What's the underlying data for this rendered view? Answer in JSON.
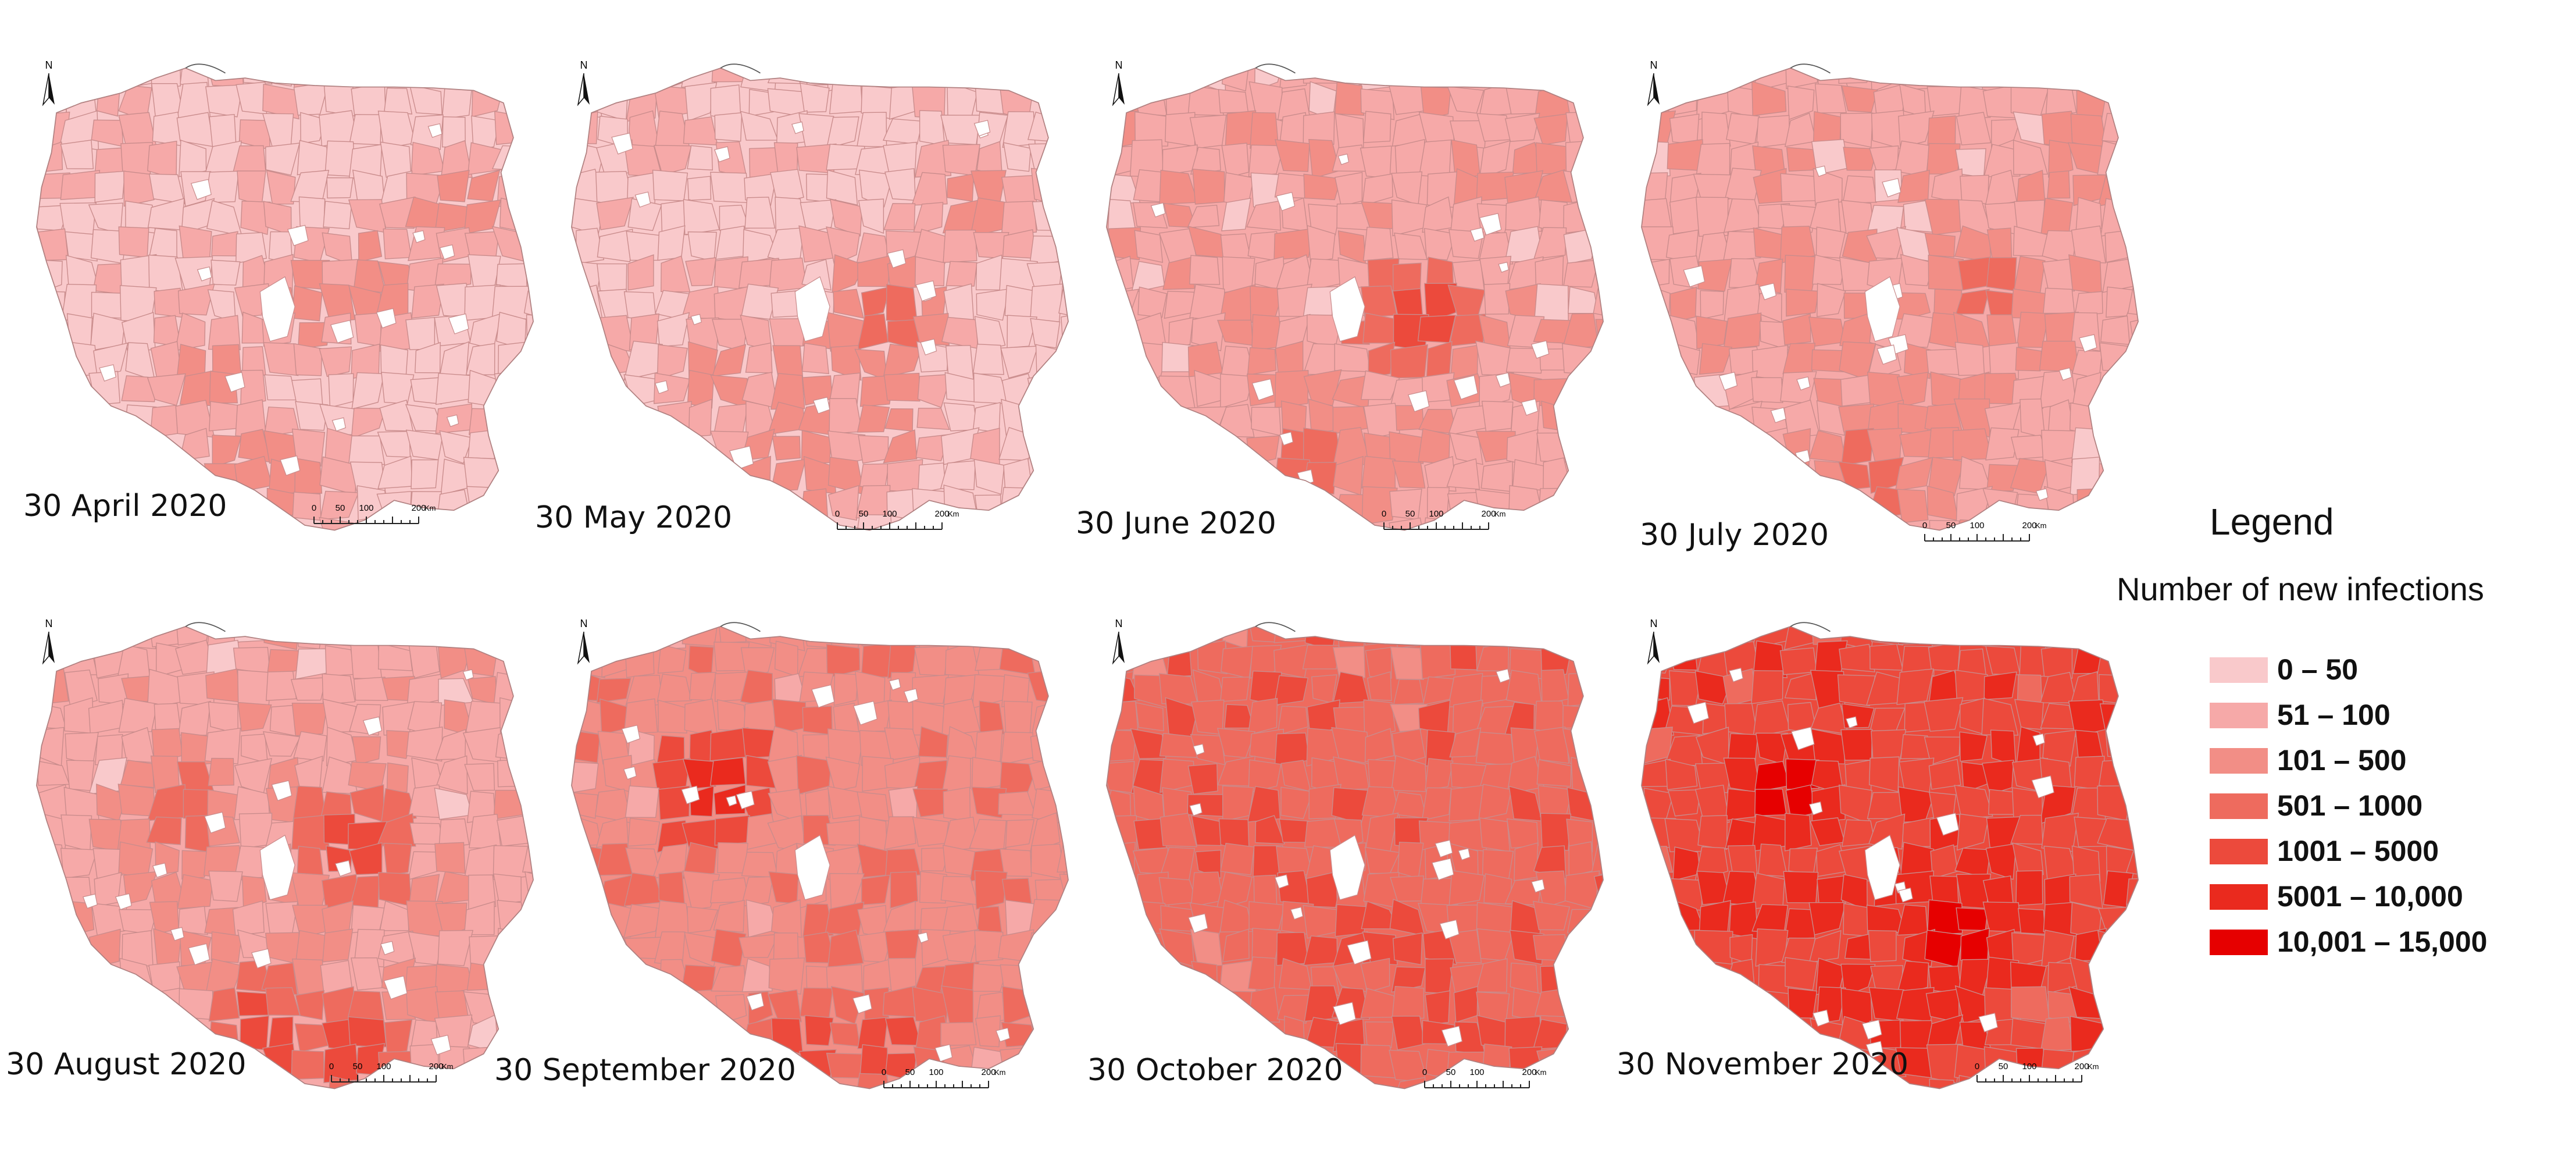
{
  "maps": [
    {
      "date_label": "30 April 2020",
      "level": 0,
      "hotspots": [
        [
          0.55,
          0.52,
          2
        ],
        [
          0.33,
          0.68,
          2
        ],
        [
          0.4,
          0.85,
          2
        ],
        [
          0.62,
          0.62,
          1
        ],
        [
          0.28,
          0.55,
          1
        ],
        [
          0.18,
          0.15,
          1
        ],
        [
          0.47,
          0.3,
          1
        ],
        [
          0.85,
          0.32,
          2
        ],
        [
          0.5,
          0.88,
          2
        ],
        [
          0.3,
          0.8,
          1
        ],
        [
          0.68,
          0.46,
          2
        ]
      ]
    },
    {
      "date_label": "30 May 2020",
      "level": 0,
      "hotspots": [
        [
          0.62,
          0.55,
          3
        ],
        [
          0.3,
          0.68,
          2
        ],
        [
          0.4,
          0.86,
          2
        ],
        [
          0.65,
          0.75,
          2
        ],
        [
          0.55,
          0.4,
          1
        ],
        [
          0.18,
          0.15,
          1
        ],
        [
          0.8,
          0.32,
          2
        ],
        [
          0.28,
          0.52,
          1
        ],
        [
          0.5,
          0.88,
          2
        ],
        [
          0.72,
          0.35,
          1
        ],
        [
          0.45,
          0.7,
          2
        ]
      ]
    },
    {
      "date_label": "30 June 2020",
      "level": 1,
      "hotspots": [
        [
          0.62,
          0.55,
          4
        ],
        [
          0.35,
          0.65,
          2
        ],
        [
          0.42,
          0.87,
          3
        ],
        [
          0.65,
          0.78,
          2
        ],
        [
          0.5,
          0.35,
          1
        ],
        [
          0.85,
          0.25,
          2
        ],
        [
          0.28,
          0.55,
          2
        ],
        [
          0.48,
          0.72,
          2
        ],
        [
          0.7,
          0.62,
          2
        ],
        [
          0.55,
          0.88,
          2
        ],
        [
          0.18,
          0.15,
          1
        ]
      ]
    },
    {
      "date_label": "30 July 2020",
      "level": 1,
      "hotspots": [
        [
          0.68,
          0.48,
          3
        ],
        [
          0.38,
          0.6,
          2
        ],
        [
          0.45,
          0.88,
          3
        ],
        [
          0.65,
          0.75,
          2
        ],
        [
          0.85,
          0.28,
          2
        ],
        [
          0.3,
          0.45,
          2
        ],
        [
          0.55,
          0.68,
          2
        ],
        [
          0.82,
          0.6,
          2
        ],
        [
          0.48,
          0.5,
          1
        ],
        [
          0.2,
          0.15,
          1
        ],
        [
          0.58,
          0.88,
          2
        ]
      ]
    },
    {
      "date_label": "30 August 2020",
      "level": 1,
      "hotspots": [
        [
          0.65,
          0.48,
          4
        ],
        [
          0.3,
          0.4,
          3
        ],
        [
          0.45,
          0.88,
          4
        ],
        [
          0.62,
          0.9,
          4
        ],
        [
          0.55,
          0.7,
          2
        ],
        [
          0.82,
          0.58,
          2
        ],
        [
          0.35,
          0.7,
          2
        ],
        [
          0.78,
          0.78,
          2
        ],
        [
          0.22,
          0.55,
          2
        ],
        [
          0.7,
          0.32,
          2
        ],
        [
          0.5,
          0.55,
          2
        ]
      ]
    },
    {
      "date_label": "30 September 2020",
      "level": 2,
      "hotspots": [
        [
          0.28,
          0.36,
          5
        ],
        [
          0.65,
          0.55,
          3
        ],
        [
          0.45,
          0.9,
          4
        ],
        [
          0.65,
          0.92,
          4
        ],
        [
          0.52,
          0.68,
          3
        ],
        [
          0.8,
          0.6,
          2
        ],
        [
          0.4,
          0.55,
          2
        ],
        [
          0.75,
          0.78,
          3
        ],
        [
          0.22,
          0.6,
          2
        ],
        [
          0.7,
          0.32,
          2
        ],
        [
          0.55,
          0.4,
          2
        ]
      ]
    },
    {
      "date_label": "30 October 2020",
      "level": 3,
      "hotspots": [
        [
          0.62,
          0.7,
          4
        ],
        [
          0.32,
          0.45,
          4
        ],
        [
          0.45,
          0.88,
          4
        ],
        [
          0.72,
          0.85,
          4
        ],
        [
          0.55,
          0.6,
          3
        ],
        [
          0.8,
          0.58,
          3
        ],
        [
          0.4,
          0.3,
          3
        ],
        [
          0.22,
          0.62,
          3
        ],
        [
          0.7,
          0.4,
          3
        ],
        [
          0.5,
          0.35,
          3
        ],
        [
          0.85,
          0.28,
          3
        ]
      ]
    },
    {
      "date_label": "30 November 2020",
      "level": 4,
      "hotspots": [
        [
          0.28,
          0.37,
          6
        ],
        [
          0.64,
          0.68,
          6
        ],
        [
          0.55,
          0.88,
          5
        ],
        [
          0.42,
          0.78,
          5
        ],
        [
          0.7,
          0.52,
          5
        ],
        [
          0.5,
          0.55,
          5
        ],
        [
          0.8,
          0.6,
          5
        ],
        [
          0.35,
          0.6,
          5
        ],
        [
          0.62,
          0.85,
          5
        ],
        [
          0.2,
          0.62,
          5
        ],
        [
          0.72,
          0.3,
          5
        ]
      ]
    }
  ],
  "scale_bar": {
    "ticks": [
      "0",
      "50",
      "100",
      "200"
    ],
    "unit": "Km"
  },
  "north_arrow_label": "N",
  "legend": {
    "title": "Legend",
    "subtitle": "Number of new infections",
    "classes": [
      {
        "label": "0 – 50",
        "color": "#f9c9cb"
      },
      {
        "label": "51 – 100",
        "color": "#f6a9a8"
      },
      {
        "label": "101 – 500",
        "color": "#f28e86"
      },
      {
        "label": "501 – 1000",
        "color": "#ee6b5e"
      },
      {
        "label": "1001 – 5000",
        "color": "#ec4a3c"
      },
      {
        "label": "5001 – 10,000",
        "color": "#ea2a1e"
      },
      {
        "label": "10,001 – 15,000",
        "color": "#e60000"
      }
    ]
  }
}
